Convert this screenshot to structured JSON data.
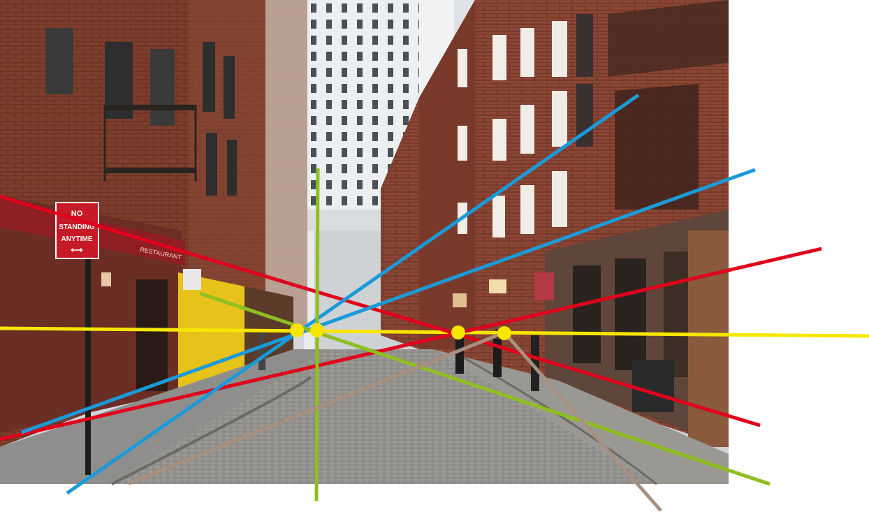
{
  "photo": {
    "sign": {
      "line1": "NO",
      "line2": "STANDING",
      "line3": "ANYTIME",
      "arrow": "⟷"
    },
    "awning_text": "RESTAURANT"
  },
  "colors": {
    "horizon": "#f7e600",
    "red": "#e0001b",
    "blue": "#1a9ad9",
    "green": "#8dbf1f",
    "tan": "#a89080",
    "vanishing_point": "#f7e600",
    "brick": "#7a3a2a",
    "brick_dark": "#4e2418",
    "sky_building": "#e9eaec",
    "cobble": "#8b8a86"
  }
}
